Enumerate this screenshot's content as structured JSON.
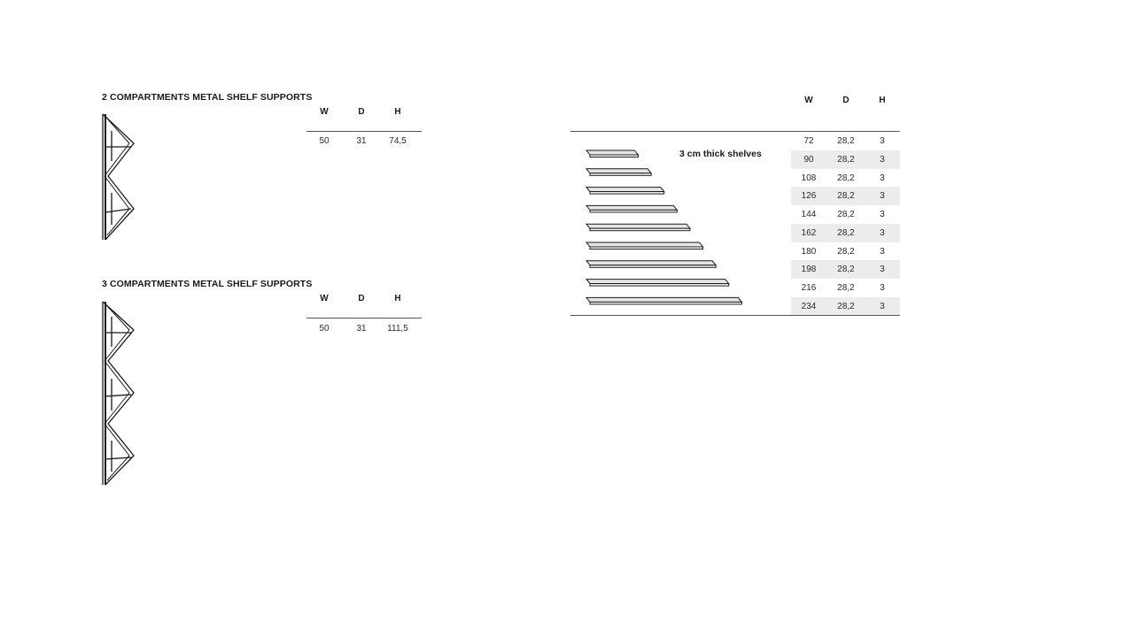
{
  "support2": {
    "title": "2 COMPARTMENTS METAL SHELF SUPPORTS",
    "headers": {
      "w": "W",
      "d": "D",
      "h": "H"
    },
    "row": {
      "w": "50",
      "d": "31",
      "h": "74,5"
    }
  },
  "support3": {
    "title": "3 COMPARTMENTS METAL SHELF SUPPORTS",
    "headers": {
      "w": "W",
      "d": "D",
      "h": "H"
    },
    "row": {
      "w": "50",
      "d": "31",
      "h": "111,5"
    }
  },
  "shelves": {
    "note": "3 cm thick shelves",
    "headers": {
      "w": "W",
      "d": "D",
      "h": "H"
    },
    "rows": [
      {
        "w": "72",
        "d": "28,2",
        "h": "3"
      },
      {
        "w": "90",
        "d": "28,2",
        "h": "3"
      },
      {
        "w": "108",
        "d": "28,2",
        "h": "3"
      },
      {
        "w": "126",
        "d": "28,2",
        "h": "3"
      },
      {
        "w": "144",
        "d": "28,2",
        "h": "3"
      },
      {
        "w": "162",
        "d": "28,2",
        "h": "3"
      },
      {
        "w": "180",
        "d": "28,2",
        "h": "3"
      },
      {
        "w": "198",
        "d": "28,2",
        "h": "3"
      },
      {
        "w": "216",
        "d": "28,2",
        "h": "3"
      },
      {
        "w": "234",
        "d": "28,2",
        "h": "3"
      }
    ]
  }
}
